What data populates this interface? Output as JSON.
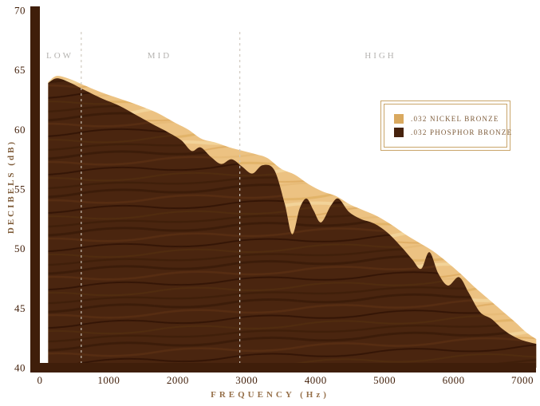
{
  "y_axis": {
    "label": "DECIBELS (dB)",
    "ticks": [
      70,
      65,
      60,
      55,
      50,
      45,
      40
    ]
  },
  "x_axis": {
    "label": "FREQUENCY (Hz)",
    "ticks": [
      0,
      1000,
      2000,
      3000,
      4000,
      5000,
      6000,
      7000
    ]
  },
  "regions": [
    {
      "label": "LOW",
      "from": 0,
      "to": 600
    },
    {
      "label": "MID",
      "from": 600,
      "to": 2900
    },
    {
      "label": "HIGH",
      "from": 2900,
      "to": 7200
    }
  ],
  "legend": [
    {
      "label": ".032 NICKEL BRONZE",
      "color": "#d9a95f"
    },
    {
      "label": ".032 PHOSPHOR BRONZE",
      "color": "#46220d"
    }
  ],
  "colors": {
    "axis": "#3f1e0a",
    "tick_text": "#45230e",
    "region_text": "#b5b3b0",
    "dashed_line": "#cfc8bd"
  },
  "chart_data": {
    "type": "area",
    "xlabel": "FREQUENCY (Hz)",
    "ylabel": "DECIBELS (dB)",
    "xlim": [
      0,
      7200
    ],
    "ylim": [
      40,
      70
    ],
    "grid": false,
    "legend_position": "upper-right",
    "series": [
      {
        "name": ".032 Nickel Bronze",
        "texture": "light-wood",
        "color": "#e3bc7d",
        "points": [
          [
            120,
            64.0
          ],
          [
            250,
            64.5
          ],
          [
            450,
            64.2
          ],
          [
            650,
            63.7
          ],
          [
            900,
            63.1
          ],
          [
            1150,
            62.6
          ],
          [
            1400,
            62.1
          ],
          [
            1700,
            61.4
          ],
          [
            1950,
            60.6
          ],
          [
            2150,
            60.0
          ],
          [
            2350,
            59.2
          ],
          [
            2550,
            58.9
          ],
          [
            2750,
            58.5
          ],
          [
            2950,
            58.2
          ],
          [
            3150,
            57.9
          ],
          [
            3300,
            57.6
          ],
          [
            3500,
            56.7
          ],
          [
            3700,
            56.2
          ],
          [
            3900,
            55.4
          ],
          [
            4100,
            54.8
          ],
          [
            4300,
            54.4
          ],
          [
            4500,
            53.7
          ],
          [
            4700,
            53.2
          ],
          [
            4900,
            52.7
          ],
          [
            5100,
            52.0
          ],
          [
            5300,
            51.2
          ],
          [
            5500,
            50.5
          ],
          [
            5700,
            49.8
          ],
          [
            5900,
            48.9
          ],
          [
            6100,
            47.9
          ],
          [
            6300,
            46.8
          ],
          [
            6500,
            45.8
          ],
          [
            6700,
            44.8
          ],
          [
            6900,
            43.8
          ],
          [
            7050,
            43.0
          ],
          [
            7200,
            42.4
          ]
        ]
      },
      {
        "name": ".032 Phosphor Bronze",
        "texture": "dark-wood",
        "color": "#48230d",
        "points": [
          [
            120,
            63.9
          ],
          [
            250,
            64.3
          ],
          [
            450,
            63.9
          ],
          [
            650,
            63.3
          ],
          [
            900,
            62.6
          ],
          [
            1150,
            62.0
          ],
          [
            1400,
            61.2
          ],
          [
            1650,
            60.4
          ],
          [
            1850,
            59.8
          ],
          [
            2050,
            59.1
          ],
          [
            2200,
            58.2
          ],
          [
            2330,
            58.5
          ],
          [
            2480,
            57.7
          ],
          [
            2630,
            57.1
          ],
          [
            2780,
            57.5
          ],
          [
            2930,
            56.9
          ],
          [
            3080,
            56.3
          ],
          [
            3230,
            57.0
          ],
          [
            3400,
            56.6
          ],
          [
            3550,
            53.8
          ],
          [
            3660,
            51.2
          ],
          [
            3770,
            53.4
          ],
          [
            3870,
            54.2
          ],
          [
            3970,
            53.2
          ],
          [
            4080,
            52.2
          ],
          [
            4220,
            53.6
          ],
          [
            4330,
            54.2
          ],
          [
            4480,
            53.1
          ],
          [
            4650,
            52.5
          ],
          [
            4850,
            52.1
          ],
          [
            5050,
            51.3
          ],
          [
            5250,
            50.1
          ],
          [
            5400,
            49.1
          ],
          [
            5530,
            48.3
          ],
          [
            5650,
            49.7
          ],
          [
            5780,
            47.9
          ],
          [
            5920,
            46.9
          ],
          [
            6080,
            47.6
          ],
          [
            6220,
            46.3
          ],
          [
            6380,
            44.7
          ],
          [
            6550,
            44.1
          ],
          [
            6700,
            43.3
          ],
          [
            6850,
            42.7
          ],
          [
            7000,
            42.3
          ],
          [
            7200,
            42.0
          ]
        ]
      }
    ]
  }
}
